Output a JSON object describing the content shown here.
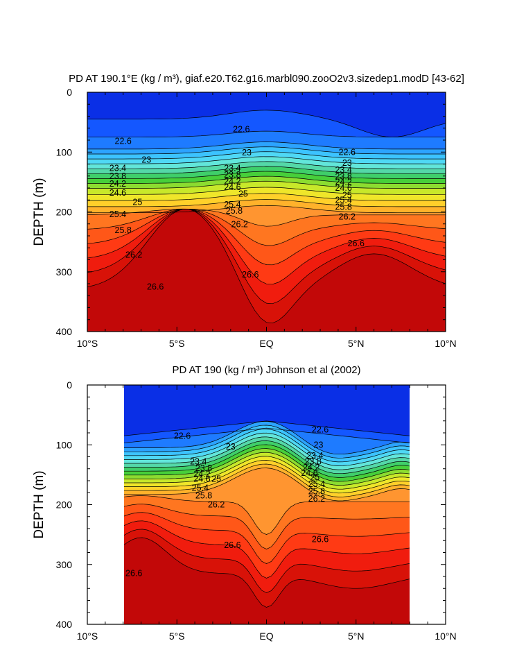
{
  "chart_data": [
    {
      "type": "contour",
      "title": "PD AT 190.1°E (kg / m³), giaf.e20.T62.g16.marbl090.zooO2v3.sizedep1.modD [43-62]",
      "ylabel": "DEPTH (m)",
      "xlabel": "",
      "xlim": [
        -10,
        10
      ],
      "ylim": [
        0,
        400
      ],
      "y_inverted": true,
      "x_ticks": [
        {
          "value": -10,
          "label": "10°S"
        },
        {
          "value": -5,
          "label": "5°S"
        },
        {
          "value": 0,
          "label": "EQ"
        },
        {
          "value": 5,
          "label": "5°N"
        },
        {
          "value": 10,
          "label": "10°N"
        }
      ],
      "y_ticks": [
        0,
        100,
        200,
        300,
        400
      ],
      "data_extent": [
        -10,
        10
      ],
      "contour_labels": [
        {
          "x": -8.0,
          "y": 82,
          "label": "22.6"
        },
        {
          "x": -1.4,
          "y": 62,
          "label": "22.6"
        },
        {
          "x": 4.5,
          "y": 100,
          "label": "22.6"
        },
        {
          "x": -6.7,
          "y": 113,
          "label": "23"
        },
        {
          "x": -1.1,
          "y": 101,
          "label": "23"
        },
        {
          "x": 4.5,
          "y": 118,
          "label": "23"
        },
        {
          "x": -8.3,
          "y": 127,
          "label": "23.4"
        },
        {
          "x": -1.9,
          "y": 127,
          "label": "23.4"
        },
        {
          "x": 4.3,
          "y": 130,
          "label": "23.4"
        },
        {
          "x": -8.3,
          "y": 140,
          "label": "23.8"
        },
        {
          "x": -1.9,
          "y": 138,
          "label": "23.8"
        },
        {
          "x": 4.3,
          "y": 141,
          "label": "23.8"
        },
        {
          "x": -8.3,
          "y": 153,
          "label": "24.2"
        },
        {
          "x": -1.9,
          "y": 149,
          "label": "24.2"
        },
        {
          "x": 4.3,
          "y": 150,
          "label": "24.2"
        },
        {
          "x": -8.3,
          "y": 168,
          "label": "24.6"
        },
        {
          "x": -1.9,
          "y": 159,
          "label": "24.6"
        },
        {
          "x": 4.3,
          "y": 160,
          "label": "24.6"
        },
        {
          "x": -7.2,
          "y": 184,
          "label": "25"
        },
        {
          "x": -1.3,
          "y": 170,
          "label": "25"
        },
        {
          "x": 4.5,
          "y": 172,
          "label": "25"
        },
        {
          "x": -8.3,
          "y": 204,
          "label": "25.4"
        },
        {
          "x": -1.9,
          "y": 188,
          "label": "25.4"
        },
        {
          "x": 4.3,
          "y": 180,
          "label": "25.4"
        },
        {
          "x": -8.0,
          "y": 231,
          "label": "25.8"
        },
        {
          "x": -1.8,
          "y": 198,
          "label": "25.8"
        },
        {
          "x": 4.3,
          "y": 192,
          "label": "25.8"
        },
        {
          "x": -7.4,
          "y": 272,
          "label": "26.2"
        },
        {
          "x": -1.5,
          "y": 221,
          "label": "26.2"
        },
        {
          "x": 4.5,
          "y": 208,
          "label": "26.2"
        },
        {
          "x": -6.2,
          "y": 325,
          "label": "26.6"
        },
        {
          "x": -0.9,
          "y": 305,
          "label": "26.6"
        },
        {
          "x": 5.0,
          "y": 253,
          "label": "26.6"
        }
      ]
    },
    {
      "type": "contour",
      "title": "PD AT 190 (kg / m³) Johnson et al (2002)",
      "ylabel": "DEPTH (m)",
      "xlabel": "",
      "xlim": [
        -10,
        10
      ],
      "ylim": [
        0,
        400
      ],
      "y_inverted": true,
      "x_ticks": [
        {
          "value": -10,
          "label": "10°S"
        },
        {
          "value": -5,
          "label": "5°S"
        },
        {
          "value": 0,
          "label": "EQ"
        },
        {
          "value": 5,
          "label": "5°N"
        },
        {
          "value": 10,
          "label": "10°N"
        }
      ],
      "y_ticks": [
        0,
        100,
        200,
        300,
        400
      ],
      "data_extent": [
        -8,
        8
      ],
      "contour_labels": [
        {
          "x": -4.7,
          "y": 85,
          "label": "22.6"
        },
        {
          "x": 3.0,
          "y": 75,
          "label": "22.6"
        },
        {
          "x": -2.0,
          "y": 103,
          "label": "23"
        },
        {
          "x": 2.9,
          "y": 100,
          "label": "23"
        },
        {
          "x": -3.8,
          "y": 128,
          "label": "23.4"
        },
        {
          "x": 2.7,
          "y": 118,
          "label": "23.4"
        },
        {
          "x": -3.5,
          "y": 139,
          "label": "23.8"
        },
        {
          "x": 2.6,
          "y": 128,
          "label": "23.8"
        },
        {
          "x": -3.6,
          "y": 149,
          "label": "24.2"
        },
        {
          "x": 2.5,
          "y": 138,
          "label": "24.2"
        },
        {
          "x": -3.6,
          "y": 157,
          "label": "24.6"
        },
        {
          "x": 2.4,
          "y": 147,
          "label": "24.6"
        },
        {
          "x": -2.8,
          "y": 157,
          "label": "25"
        },
        {
          "x": 2.7,
          "y": 155,
          "label": "25"
        },
        {
          "x": -3.7,
          "y": 172,
          "label": "25.4"
        },
        {
          "x": 2.8,
          "y": 166,
          "label": "25.4"
        },
        {
          "x": -3.5,
          "y": 185,
          "label": "25.8"
        },
        {
          "x": 2.8,
          "y": 178,
          "label": "25.8"
        },
        {
          "x": -2.8,
          "y": 200,
          "label": "26.2"
        },
        {
          "x": 2.8,
          "y": 190,
          "label": "26.2"
        },
        {
          "x": -1.9,
          "y": 268,
          "label": "26.6"
        },
        {
          "x": 3.0,
          "y": 258,
          "label": "26.6"
        },
        {
          "x": -7.4,
          "y": 315,
          "label": "26.6"
        }
      ]
    }
  ]
}
